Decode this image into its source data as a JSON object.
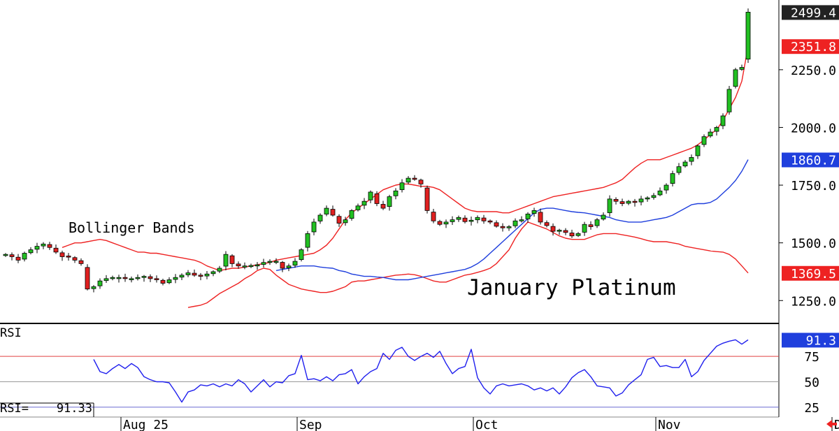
{
  "colors": {
    "up_candle": "#22c022",
    "down_candle": "#e02020",
    "bollinger_band": "#ee2222",
    "bollinger_mid": "#1f3fdd",
    "rsi_line": "#2020ee",
    "rsi_upper_ref": "#e04040",
    "rsi_mid_ref": "#999999",
    "rsi_lower_ref": "#6a6ad0",
    "tag_last": "#222222",
    "tag_upper": "#ee2222",
    "tag_mid": "#1f3fdd",
    "tag_lower": "#ee2222",
    "tag_rsi": "#1f3fdd",
    "arrow": "#ee2222"
  },
  "labels": {
    "study": "Bollinger Bands",
    "instrument": "January Platinum",
    "rsi_title": "RSI",
    "rsi_readout_label": "RSI=",
    "rsi_readout_value": "91.33"
  },
  "price_tags": {
    "last": "2499.4",
    "upper": "2351.8",
    "mid": "1860.7",
    "lower": "1369.5",
    "rsi": "91.3"
  },
  "chart_data": [
    {
      "type": "candlestick",
      "title": "January Platinum",
      "study": "Bollinger Bands",
      "ylim": [
        1160,
        2540
      ],
      "y_ticks": [
        1250.0,
        1500.0,
        1750.0,
        2000.0,
        2250.0
      ],
      "y_tick_labels": [
        "1250.0",
        "1500.0",
        "1750.0",
        "2000.0",
        "2250.0"
      ],
      "x_tick_labels": [
        "Aug 25",
        "Sep",
        "Oct",
        "Nov",
        "Dec"
      ],
      "x_tick_index": [
        19,
        47,
        75,
        104,
        132
      ],
      "close": [
        1450,
        1440,
        1425,
        1455,
        1470,
        1485,
        1495,
        1480,
        1460,
        1440,
        1438,
        1425,
        1410,
        1300,
        1310,
        1335,
        1345,
        1350,
        1350,
        1345,
        1345,
        1350,
        1355,
        1345,
        1340,
        1325,
        1340,
        1350,
        1360,
        1370,
        1360,
        1355,
        1365,
        1375,
        1390,
        1450,
        1410,
        1400,
        1400,
        1402,
        1405,
        1415,
        1420,
        1420,
        1390,
        1400,
        1420,
        1470,
        1540,
        1590,
        1620,
        1650,
        1620,
        1585,
        1600,
        1640,
        1660,
        1680,
        1720,
        1670,
        1650,
        1700,
        1725,
        1760,
        1780,
        1775,
        1755,
        1640,
        1595,
        1580,
        1590,
        1600,
        1610,
        1592,
        1598,
        1610,
        1595,
        1590,
        1572,
        1565,
        1570,
        1595,
        1600,
        1625,
        1640,
        1590,
        1575,
        1550,
        1555,
        1545,
        1530,
        1540,
        1580,
        1570,
        1600,
        1620,
        1690,
        1680,
        1670,
        1680,
        1675,
        1690,
        1695,
        1705,
        1725,
        1750,
        1800,
        1830,
        1850,
        1870,
        1920,
        1960,
        1980,
        2000,
        2050,
        2165,
        2250,
        2260,
        2499.4
      ],
      "upper_band": [
        1480,
        1490,
        1500,
        1500,
        1505,
        1510,
        1515,
        1510,
        1500,
        1490,
        1480,
        1470,
        1460,
        1460,
        1455,
        1455,
        1450,
        1445,
        1440,
        1435,
        1430,
        1425,
        1415,
        1400,
        1390,
        1380,
        1385,
        1390,
        1390,
        1395,
        1400,
        1405,
        1410,
        1415,
        1425,
        1430,
        1435,
        1440,
        1445,
        1450,
        1455,
        1470,
        1490,
        1520,
        1560,
        1600,
        1630,
        1650,
        1670,
        1690,
        1710,
        1730,
        1740,
        1750,
        1755,
        1755,
        1750,
        1745,
        1745,
        1740,
        1730,
        1710,
        1690,
        1670,
        1650,
        1640,
        1635,
        1635,
        1635,
        1635,
        1630,
        1630,
        1640,
        1650,
        1660,
        1670,
        1680,
        1690,
        1700,
        1705,
        1710,
        1715,
        1720,
        1725,
        1730,
        1735,
        1740,
        1750,
        1760,
        1775,
        1800,
        1825,
        1845,
        1860,
        1860,
        1860,
        1870,
        1880,
        1890,
        1900,
        1910,
        1925,
        1945,
        1970,
        1990,
        2030,
        2080,
        2130,
        2200,
        2351.8
      ],
      "mid_band": [
        1380,
        1385,
        1390,
        1395,
        1400,
        1400,
        1400,
        1395,
        1392,
        1390,
        1380,
        1375,
        1365,
        1360,
        1355,
        1355,
        1352,
        1350,
        1345,
        1340,
        1340,
        1340,
        1345,
        1350,
        1355,
        1360,
        1365,
        1370,
        1375,
        1380,
        1385,
        1395,
        1410,
        1430,
        1455,
        1480,
        1505,
        1530,
        1555,
        1580,
        1605,
        1630,
        1645,
        1650,
        1650,
        1645,
        1640,
        1635,
        1632,
        1630,
        1625,
        1620,
        1615,
        1610,
        1600,
        1595,
        1590,
        1590,
        1590,
        1595,
        1600,
        1605,
        1610,
        1620,
        1635,
        1650,
        1665,
        1670,
        1670,
        1675,
        1690,
        1715,
        1740,
        1770,
        1810,
        1860.7
      ],
      "lower_band": [
        1220,
        1225,
        1230,
        1240,
        1260,
        1280,
        1295,
        1310,
        1325,
        1345,
        1360,
        1380,
        1390,
        1385,
        1360,
        1340,
        1320,
        1310,
        1300,
        1295,
        1290,
        1285,
        1285,
        1290,
        1300,
        1310,
        1330,
        1335,
        1335,
        1340,
        1345,
        1350,
        1355,
        1360,
        1362,
        1365,
        1362,
        1355,
        1345,
        1335,
        1330,
        1330,
        1340,
        1350,
        1360,
        1365,
        1372,
        1380,
        1390,
        1410,
        1440,
        1470,
        1520,
        1560,
        1590,
        1580,
        1570,
        1560,
        1545,
        1530,
        1520,
        1515,
        1515,
        1515,
        1525,
        1535,
        1540,
        1540,
        1540,
        1535,
        1530,
        1525,
        1518,
        1510,
        1505,
        1505,
        1505,
        1500,
        1495,
        1485,
        1480,
        1475,
        1470,
        1465,
        1462,
        1460,
        1450,
        1430,
        1400,
        1369.5
      ]
    },
    {
      "type": "line",
      "title": "RSI",
      "ylim": [
        16,
        104
      ],
      "y_ticks": [
        25,
        50,
        75
      ],
      "y_tick_labels": [
        "25",
        "50",
        "75"
      ],
      "ref_lines": [
        75,
        50,
        25
      ],
      "series": [
        {
          "name": "RSI",
          "values": [
            72,
            60,
            58,
            63,
            67,
            63,
            68,
            64,
            55,
            52,
            50,
            50,
            49,
            40,
            30,
            40,
            42,
            47,
            46,
            48,
            45,
            48,
            46,
            52,
            48,
            40,
            46,
            52,
            45,
            50,
            49,
            56,
            58,
            76,
            52,
            53,
            51,
            55,
            51,
            57,
            58,
            62,
            48,
            55,
            60,
            63,
            78,
            72,
            81,
            84,
            75,
            71,
            75,
            78,
            74,
            80,
            68,
            58,
            63,
            65,
            82,
            54,
            44,
            38,
            46,
            48,
            46,
            47,
            48,
            46,
            42,
            44,
            41,
            44,
            38,
            45,
            54,
            59,
            62,
            55,
            46,
            45,
            44,
            36,
            39,
            47,
            52,
            57,
            72,
            74,
            65,
            66,
            64,
            64,
            72,
            55,
            60,
            71,
            78,
            85,
            88,
            90,
            91.33,
            87,
            91.3
          ]
        }
      ],
      "readout": "91.33"
    }
  ]
}
